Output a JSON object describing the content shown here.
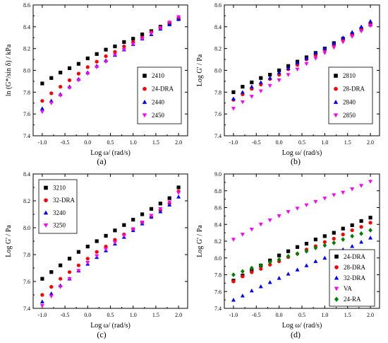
{
  "chart_data": [
    {
      "type": "scatter",
      "panel_label": "(a)",
      "xlabel": "Log ω/ (rad/s)",
      "ylabel": "ln (G*/sin δ) / kPa",
      "xlim": [
        -1.2,
        2.2
      ],
      "ylim": [
        7.4,
        8.6
      ],
      "xticks": [
        "-1.0",
        "-0.5",
        "0.0",
        "0.5",
        "1.0",
        "1.5",
        "2.0"
      ],
      "yticks": [
        "7.4",
        "7.6",
        "7.8",
        "8.0",
        "8.2",
        "8.4",
        "8.6"
      ],
      "legend_position": "center-right",
      "x": [
        -1.0,
        -0.8,
        -0.6,
        -0.4,
        -0.2,
        0.0,
        0.2,
        0.4,
        0.6,
        0.8,
        1.0,
        1.2,
        1.4,
        1.6,
        1.8,
        2.0
      ],
      "series": [
        {
          "name": "2410",
          "marker": "square",
          "color": "#000000",
          "values": [
            7.88,
            7.93,
            7.98,
            8.02,
            8.06,
            8.11,
            8.15,
            8.19,
            8.22,
            8.26,
            8.29,
            8.33,
            8.36,
            8.4,
            8.43,
            8.47
          ]
        },
        {
          "name": "24-DRA",
          "marker": "circle",
          "color": "#ff0000",
          "values": [
            7.72,
            7.79,
            7.85,
            7.91,
            7.97,
            8.03,
            8.08,
            8.13,
            8.17,
            8.22,
            8.26,
            8.3,
            8.35,
            8.39,
            8.44,
            8.48
          ]
        },
        {
          "name": "2440",
          "marker": "triangle-up",
          "color": "#0000ff",
          "values": [
            7.65,
            7.72,
            7.78,
            7.85,
            7.92,
            7.98,
            8.04,
            8.09,
            8.14,
            8.19,
            8.24,
            8.29,
            8.33,
            8.38,
            8.42,
            8.47
          ]
        },
        {
          "name": "2450",
          "marker": "triangle-down",
          "color": "#ff00ff",
          "values": [
            7.62,
            7.7,
            7.77,
            7.84,
            7.91,
            7.97,
            8.03,
            8.08,
            8.14,
            8.19,
            8.24,
            8.29,
            8.34,
            8.39,
            8.44,
            8.49
          ]
        }
      ]
    },
    {
      "type": "scatter",
      "panel_label": "(b)",
      "xlabel": "Log ω/ (rad/s)",
      "ylabel": "Log G' / Pa",
      "xlim": [
        -1.2,
        2.2
      ],
      "ylim": [
        7.4,
        8.6
      ],
      "xticks": [
        "-1.0",
        "-0.5",
        "0.0",
        "0.5",
        "1.0",
        "1.5",
        "2.0"
      ],
      "yticks": [
        "7.4",
        "7.6",
        "7.8",
        "8.0",
        "8.2",
        "8.4",
        "8.6"
      ],
      "legend_position": "center-right",
      "x": [
        -1.0,
        -0.8,
        -0.6,
        -0.4,
        -0.2,
        0.0,
        0.2,
        0.4,
        0.6,
        0.8,
        1.0,
        1.2,
        1.4,
        1.6,
        1.8,
        2.0
      ],
      "series": [
        {
          "name": "2810",
          "marker": "square",
          "color": "#000000",
          "values": [
            7.8,
            7.85,
            7.89,
            7.93,
            7.96,
            8.0,
            8.04,
            8.08,
            8.12,
            8.16,
            8.2,
            8.25,
            8.29,
            8.33,
            8.38,
            8.42
          ]
        },
        {
          "name": "28-DRA",
          "marker": "circle",
          "color": "#ff0000",
          "values": [
            7.73,
            7.78,
            7.83,
            7.87,
            7.92,
            7.96,
            8.01,
            8.05,
            8.1,
            8.14,
            8.19,
            8.23,
            8.28,
            8.33,
            8.37,
            8.42
          ]
        },
        {
          "name": "2840",
          "marker": "triangle-up",
          "color": "#0000ff",
          "values": [
            7.74,
            7.8,
            7.85,
            7.89,
            7.93,
            7.98,
            8.02,
            8.07,
            8.11,
            8.16,
            8.2,
            8.25,
            8.3,
            8.35,
            8.4,
            8.45
          ]
        },
        {
          "name": "2850",
          "marker": "triangle-down",
          "color": "#ff00ff",
          "values": [
            7.65,
            7.71,
            7.76,
            7.81,
            7.86,
            7.91,
            7.96,
            8.01,
            8.06,
            8.11,
            8.16,
            8.21,
            8.26,
            8.31,
            8.36,
            8.41
          ]
        }
      ]
    },
    {
      "type": "scatter",
      "panel_label": "(c)",
      "xlabel": "Log ω/ (rad/s)",
      "ylabel": "Log G' / Pa",
      "xlim": [
        -1.2,
        2.2
      ],
      "ylim": [
        7.4,
        8.4
      ],
      "xticks": [
        "-1.0",
        "-0.5",
        "0.0",
        "0.5",
        "1.0",
        "1.5",
        "2.0"
      ],
      "yticks": [
        "7.4",
        "7.6",
        "7.8",
        "8.0",
        "8.2",
        "8.4"
      ],
      "legend_position": "top-left",
      "x": [
        -1.0,
        -0.8,
        -0.6,
        -0.4,
        -0.2,
        0.0,
        0.2,
        0.4,
        0.6,
        0.8,
        1.0,
        1.2,
        1.4,
        1.6,
        1.8,
        2.0
      ],
      "series": [
        {
          "name": "3210",
          "marker": "square",
          "color": "#000000",
          "values": [
            7.62,
            7.67,
            7.72,
            7.77,
            7.82,
            7.86,
            7.9,
            7.94,
            7.98,
            8.02,
            8.06,
            8.1,
            8.14,
            8.18,
            8.22,
            8.3
          ]
        },
        {
          "name": "32-DRA",
          "marker": "circle",
          "color": "#ff0000",
          "values": [
            7.5,
            7.56,
            7.62,
            7.67,
            7.72,
            7.77,
            7.82,
            7.86,
            7.91,
            7.95,
            7.99,
            8.04,
            8.08,
            8.13,
            8.18,
            8.27
          ]
        },
        {
          "name": "3240",
          "marker": "triangle-up",
          "color": "#0000ff",
          "values": [
            7.45,
            7.51,
            7.57,
            7.62,
            7.68,
            7.73,
            7.78,
            7.83,
            7.88,
            7.93,
            7.98,
            8.03,
            8.08,
            8.12,
            8.17,
            8.23
          ]
        },
        {
          "name": "3250",
          "marker": "triangle-down",
          "color": "#ff00ff",
          "values": [
            7.42,
            7.49,
            7.56,
            7.62,
            7.68,
            7.74,
            7.79,
            7.84,
            7.89,
            7.94,
            7.99,
            8.04,
            8.09,
            8.14,
            8.19,
            8.26
          ]
        }
      ]
    },
    {
      "type": "scatter",
      "panel_label": "(d)",
      "xlabel": "Log ω/ (rad/s)",
      "ylabel": "Log G' / Pa",
      "xlim": [
        -1.2,
        2.2
      ],
      "ylim": [
        7.4,
        9.0
      ],
      "xticks": [
        "-1.0",
        "-0.5",
        "0.0",
        "0.5",
        "1.0",
        "1.5",
        "2.0"
      ],
      "yticks": [
        "7.4",
        "7.6",
        "7.8",
        "8.0",
        "8.2",
        "8.4",
        "8.6",
        "8.8",
        "9.0"
      ],
      "legend_position": "bottom-right",
      "x": [
        -1.0,
        -0.8,
        -0.6,
        -0.4,
        -0.2,
        0.0,
        0.2,
        0.4,
        0.6,
        0.8,
        1.0,
        1.2,
        1.4,
        1.6,
        1.8,
        2.0
      ],
      "series": [
        {
          "name": "24-DRA",
          "marker": "square",
          "color": "#000000",
          "values": [
            7.73,
            7.79,
            7.85,
            7.91,
            7.97,
            8.03,
            8.08,
            8.13,
            8.17,
            8.22,
            8.26,
            8.3,
            8.35,
            8.39,
            8.44,
            8.48
          ]
        },
        {
          "name": "28-DRA",
          "marker": "circle",
          "color": "#ff0000",
          "values": [
            7.72,
            7.78,
            7.83,
            7.87,
            7.92,
            7.96,
            8.01,
            8.05,
            8.1,
            8.14,
            8.19,
            8.23,
            8.28,
            8.33,
            8.37,
            8.42
          ]
        },
        {
          "name": "32-DRA",
          "marker": "triangle-up",
          "color": "#0000ff",
          "values": [
            7.5,
            7.55,
            7.61,
            7.66,
            7.71,
            7.76,
            7.81,
            7.86,
            7.91,
            7.96,
            8.0,
            8.05,
            8.1,
            8.14,
            8.19,
            8.24
          ]
        },
        {
          "name": "VA",
          "marker": "triangle-down",
          "color": "#ff00ff",
          "values": [
            8.22,
            8.28,
            8.34,
            8.4,
            8.45,
            8.5,
            8.55,
            8.59,
            8.63,
            8.67,
            8.71,
            8.75,
            8.78,
            8.82,
            8.86,
            8.91
          ]
        },
        {
          "name": "24-RA",
          "marker": "diamond",
          "color": "#008000",
          "values": [
            7.8,
            7.84,
            7.88,
            7.91,
            7.95,
            7.98,
            8.02,
            8.05,
            8.08,
            8.12,
            8.15,
            8.18,
            8.22,
            8.26,
            8.29,
            8.33
          ]
        }
      ]
    }
  ]
}
